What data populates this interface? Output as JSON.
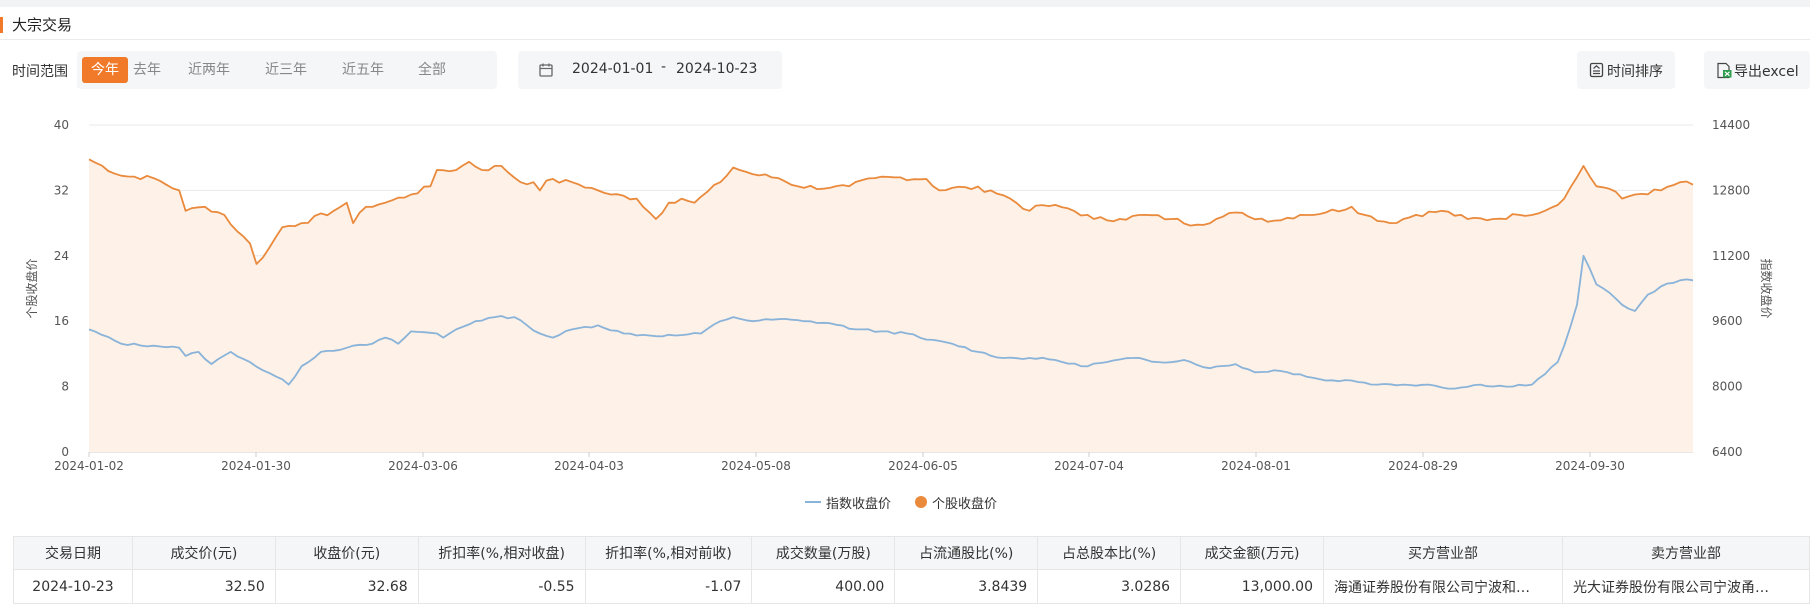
{
  "section": {
    "title": "大宗交易"
  },
  "filters": {
    "range_label": "时间范围",
    "ranges": [
      "今年",
      "去年",
      "近两年",
      "近三年",
      "近五年",
      "全部"
    ],
    "active_range": "今年",
    "start_date": "2024-01-01",
    "separator": "-",
    "end_date": "2024-10-23"
  },
  "toolbar": {
    "sort_label": "时间排序",
    "export_label": "导出excel"
  },
  "colors": {
    "accent": "#f07a2a",
    "index_line": "#8ab3d9",
    "stock_line": "#e98a3c",
    "stock_area": "#fdf1e8"
  },
  "icons": {
    "calendar": "calendar-icon",
    "sort": "sort-icon",
    "export": "excel-export-icon"
  },
  "chart_data": {
    "type": "line",
    "x_tick_labels": [
      "2024-01-02",
      "2024-01-30",
      "2024-03-06",
      "2024-04-03",
      "2024-05-08",
      "2024-06-05",
      "2024-07-04",
      "2024-08-01",
      "2024-08-29",
      "2024-09-30"
    ],
    "ylabel_left": "个股收盘价",
    "ylabel_right": "指数收盘价",
    "ylim_left": [
      0,
      40
    ],
    "yticks_left": [
      0,
      8,
      16,
      24,
      32,
      40
    ],
    "ylim_right": [
      6400,
      14400
    ],
    "yticks_right": [
      6400,
      8000,
      9600,
      11200,
      12800,
      14400
    ],
    "grid": true,
    "legend_position": "bottom",
    "x_count": 200,
    "series": [
      {
        "name": "个股收盘价",
        "axis": "left",
        "fill": true,
        "keypoints": [
          [
            0,
            35.8
          ],
          [
            5,
            33.8
          ],
          [
            10,
            33.5
          ],
          [
            14,
            32.0
          ],
          [
            15,
            29.5
          ],
          [
            18,
            30.0
          ],
          [
            21,
            29.0
          ],
          [
            23,
            27.0
          ],
          [
            25,
            25.5
          ],
          [
            26,
            23.0
          ],
          [
            28,
            25.0
          ],
          [
            30,
            27.5
          ],
          [
            33,
            28.0
          ],
          [
            38,
            29.5
          ],
          [
            40,
            30.5
          ],
          [
            41,
            28.0
          ],
          [
            43,
            30.0
          ],
          [
            46,
            30.5
          ],
          [
            50,
            31.5
          ],
          [
            53,
            32.5
          ],
          [
            54,
            34.5
          ],
          [
            57,
            34.5
          ],
          [
            59,
            35.5
          ],
          [
            61,
            34.5
          ],
          [
            64,
            35.0
          ],
          [
            67,
            33.0
          ],
          [
            69,
            33.0
          ],
          [
            70,
            32.0
          ],
          [
            71,
            33.2
          ],
          [
            75,
            33.0
          ],
          [
            79,
            32.0
          ],
          [
            81,
            31.5
          ],
          [
            85,
            31.0
          ],
          [
            88,
            28.5
          ],
          [
            90,
            30.5
          ],
          [
            92,
            31.0
          ],
          [
            94,
            30.5
          ],
          [
            98,
            33.0
          ],
          [
            100,
            34.8
          ],
          [
            103,
            34.0
          ],
          [
            107,
            33.5
          ],
          [
            110,
            32.5
          ],
          [
            115,
            32.3
          ],
          [
            118,
            32.5
          ],
          [
            122,
            33.5
          ],
          [
            125,
            33.6
          ],
          [
            130,
            33.4
          ],
          [
            132,
            32.0
          ],
          [
            136,
            32.4
          ],
          [
            140,
            32.0
          ],
          [
            143,
            31.0
          ],
          [
            146,
            29.5
          ],
          [
            148,
            30.2
          ],
          [
            152,
            29.8
          ],
          [
            156,
            28.5
          ],
          [
            160,
            28.5
          ],
          [
            164,
            29.0
          ],
          [
            168,
            28.5
          ],
          [
            172,
            27.8
          ],
          [
            175,
            28.5
          ],
          [
            178,
            29.3
          ],
          [
            180,
            28.8
          ],
          [
            184,
            28.3
          ],
          [
            188,
            29.0
          ],
          [
            192,
            29.3
          ],
          [
            196,
            30.0
          ],
          [
            198,
            29.0
          ],
          [
            202,
            28.0
          ],
          [
            206,
            29.0
          ],
          [
            210,
            29.5
          ],
          [
            214,
            28.5
          ],
          [
            218,
            28.5
          ],
          [
            222,
            29.0
          ],
          [
            226,
            29.5
          ],
          [
            229,
            31.0
          ],
          [
            232,
            35.0
          ],
          [
            234,
            32.5
          ],
          [
            236,
            32.2
          ],
          [
            238,
            31.0
          ],
          [
            240,
            31.5
          ],
          [
            244,
            32.0
          ],
          [
            247,
            33.0
          ],
          [
            249,
            32.7
          ]
        ]
      },
      {
        "name": "指数收盘价",
        "axis": "right",
        "fill": false,
        "keypoints": [
          [
            0,
            9400
          ],
          [
            5,
            9050
          ],
          [
            10,
            9000
          ],
          [
            14,
            8950
          ],
          [
            15,
            8750
          ],
          [
            17,
            8850
          ],
          [
            19,
            8550
          ],
          [
            22,
            8850
          ],
          [
            25,
            8600
          ],
          [
            27,
            8400
          ],
          [
            29,
            8250
          ],
          [
            31,
            8050
          ],
          [
            33,
            8500
          ],
          [
            36,
            8850
          ],
          [
            40,
            8950
          ],
          [
            44,
            9050
          ],
          [
            46,
            9200
          ],
          [
            48,
            9050
          ],
          [
            50,
            9350
          ],
          [
            54,
            9300
          ],
          [
            55,
            9200
          ],
          [
            57,
            9400
          ],
          [
            60,
            9600
          ],
          [
            63,
            9700
          ],
          [
            66,
            9700
          ],
          [
            68,
            9500
          ],
          [
            70,
            9300
          ],
          [
            72,
            9200
          ],
          [
            75,
            9400
          ],
          [
            79,
            9500
          ],
          [
            83,
            9300
          ],
          [
            87,
            9250
          ],
          [
            91,
            9250
          ],
          [
            95,
            9300
          ],
          [
            98,
            9600
          ],
          [
            100,
            9700
          ],
          [
            103,
            9600
          ],
          [
            107,
            9650
          ],
          [
            111,
            9600
          ],
          [
            115,
            9550
          ],
          [
            119,
            9400
          ],
          [
            123,
            9350
          ],
          [
            127,
            9300
          ],
          [
            130,
            9150
          ],
          [
            134,
            9050
          ],
          [
            138,
            8850
          ],
          [
            142,
            8700
          ],
          [
            146,
            8700
          ],
          [
            150,
            8650
          ],
          [
            154,
            8500
          ],
          [
            158,
            8600
          ],
          [
            162,
            8700
          ],
          [
            166,
            8600
          ],
          [
            170,
            8650
          ],
          [
            174,
            8450
          ],
          [
            178,
            8550
          ],
          [
            181,
            8350
          ],
          [
            184,
            8400
          ],
          [
            188,
            8300
          ],
          [
            192,
            8150
          ],
          [
            196,
            8150
          ],
          [
            200,
            8050
          ],
          [
            204,
            8050
          ],
          [
            208,
            8050
          ],
          [
            212,
            7950
          ],
          [
            216,
            8050
          ],
          [
            220,
            8000
          ],
          [
            224,
            8050
          ],
          [
            226,
            8300
          ],
          [
            228,
            8600
          ],
          [
            229,
            9000
          ],
          [
            231,
            10000
          ],
          [
            232,
            11200
          ],
          [
            234,
            10500
          ],
          [
            236,
            10300
          ],
          [
            238,
            10000
          ],
          [
            240,
            9850
          ],
          [
            242,
            10250
          ],
          [
            244,
            10450
          ],
          [
            247,
            10600
          ],
          [
            249,
            10600
          ]
        ]
      }
    ]
  },
  "legend": {
    "index": "指数收盘价",
    "stock": "个股收盘价"
  },
  "table": {
    "headers": [
      "交易日期",
      "成交价(元)",
      "收盘价(元)",
      "折扣率(%,相对收盘)",
      "折扣率(%,相对前收)",
      "成交数量(万股)",
      "占流通股比(%)",
      "占总股本比(%)",
      "成交金额(万元)",
      "买方营业部",
      "卖方营业部"
    ],
    "rows": [
      [
        "2024-10-23",
        "32.50",
        "32.68",
        "-0.55",
        "-1.07",
        "400.00",
        "3.8439",
        "3.0286",
        "13,000.00",
        "海通证券股份有限公司宁波和…",
        "光大证券股份有限公司宁波甬…"
      ]
    ]
  }
}
